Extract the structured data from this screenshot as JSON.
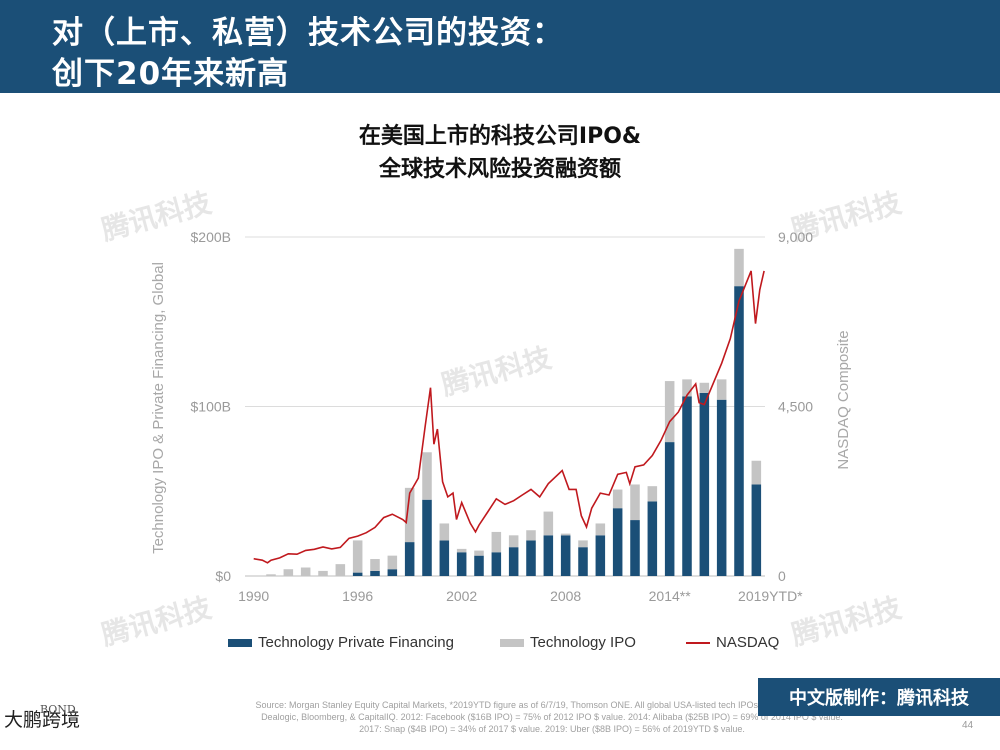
{
  "header": {
    "title_line1": "对（上市、私营）技术公司的投资：",
    "title_line2": "创下20年来新高"
  },
  "chart_title_line1": "在美国上市的科技公司IPO&",
  "chart_title_line2": "全球技术风险投资融资额",
  "chart_data": {
    "type": "bar",
    "stacked": true,
    "categories": [
      "1990",
      "1991",
      "1992",
      "1993",
      "1994",
      "1995",
      "1996",
      "1997",
      "1998",
      "1999",
      "2000",
      "2001",
      "2002",
      "2003",
      "2004",
      "2005",
      "2006",
      "2007",
      "2008",
      "2009",
      "2010",
      "2011",
      "2012",
      "2013",
      "2014",
      "2015",
      "2016",
      "2017",
      "2018",
      "2019YTD"
    ],
    "series": [
      {
        "name": "Technology Private Financing",
        "color": "#1b4f77",
        "values": [
          0,
          0,
          0,
          0,
          0,
          0,
          2,
          3,
          4,
          20,
          45,
          21,
          14,
          12,
          14,
          17,
          21,
          24,
          24,
          17,
          24,
          40,
          33,
          44,
          79,
          106,
          108,
          104,
          171,
          54
        ]
      },
      {
        "name": "Technology IPO",
        "color": "#c4c4c4",
        "values": [
          0,
          1,
          4,
          5,
          3,
          7,
          19,
          7,
          8,
          32,
          28,
          10,
          2,
          3,
          12,
          7,
          6,
          14,
          1,
          4,
          7,
          11,
          21,
          9,
          36,
          10,
          6,
          12,
          22,
          14
        ]
      }
    ],
    "line": {
      "name": "NASDAQ",
      "color": "#c0191e",
      "axis": "right",
      "points": [
        [
          1990.0,
          460
        ],
        [
          1990.5,
          420
        ],
        [
          1990.8,
          350
        ],
        [
          1991.0,
          420
        ],
        [
          1991.5,
          480
        ],
        [
          1992.0,
          590
        ],
        [
          1992.5,
          580
        ],
        [
          1993.0,
          680
        ],
        [
          1993.5,
          710
        ],
        [
          1994.0,
          770
        ],
        [
          1994.5,
          720
        ],
        [
          1995.0,
          760
        ],
        [
          1995.5,
          1000
        ],
        [
          1996.0,
          1060
        ],
        [
          1996.5,
          1150
        ],
        [
          1997.0,
          1290
        ],
        [
          1997.5,
          1550
        ],
        [
          1998.0,
          1640
        ],
        [
          1998.6,
          1500
        ],
        [
          1998.8,
          1420
        ],
        [
          1999.0,
          2200
        ],
        [
          1999.5,
          2600
        ],
        [
          1999.9,
          4000
        ],
        [
          2000.2,
          5000
        ],
        [
          2000.4,
          3500
        ],
        [
          2000.6,
          3900
        ],
        [
          2000.9,
          2500
        ],
        [
          2001.2,
          2100
        ],
        [
          2001.5,
          2200
        ],
        [
          2001.7,
          1500
        ],
        [
          2002.0,
          1950
        ],
        [
          2002.5,
          1400
        ],
        [
          2002.8,
          1170
        ],
        [
          2003.0,
          1350
        ],
        [
          2003.5,
          1700
        ],
        [
          2004.0,
          2050
        ],
        [
          2004.5,
          1900
        ],
        [
          2005.0,
          2000
        ],
        [
          2005.5,
          2150
        ],
        [
          2006.0,
          2300
        ],
        [
          2006.5,
          2100
        ],
        [
          2007.0,
          2450
        ],
        [
          2007.8,
          2800
        ],
        [
          2008.2,
          2300
        ],
        [
          2008.6,
          2300
        ],
        [
          2008.9,
          1600
        ],
        [
          2009.2,
          1300
        ],
        [
          2009.5,
          1800
        ],
        [
          2010.0,
          2200
        ],
        [
          2010.5,
          2150
        ],
        [
          2011.0,
          2700
        ],
        [
          2011.5,
          2750
        ],
        [
          2011.7,
          2450
        ],
        [
          2012.0,
          2900
        ],
        [
          2012.5,
          2950
        ],
        [
          2013.0,
          3200
        ],
        [
          2013.5,
          3600
        ],
        [
          2014.0,
          4100
        ],
        [
          2014.5,
          4350
        ],
        [
          2015.0,
          4800
        ],
        [
          2015.5,
          5100
        ],
        [
          2015.7,
          4600
        ],
        [
          2016.0,
          4550
        ],
        [
          2016.5,
          5100
        ],
        [
          2017.0,
          5650
        ],
        [
          2017.5,
          6300
        ],
        [
          2018.0,
          7300
        ],
        [
          2018.7,
          8100
        ],
        [
          2018.95,
          6700
        ],
        [
          2019.2,
          7600
        ],
        [
          2019.45,
          8100
        ]
      ]
    },
    "x_ticks": [
      "1990",
      "1996",
      "2002",
      "2008",
      "2014**",
      "2019YTD*"
    ],
    "y_left_ticks": [
      "$0",
      "$100B",
      "$200B"
    ],
    "y_left_range": [
      0,
      200
    ],
    "y_right_ticks": [
      "0",
      "4,500",
      "9,000"
    ],
    "y_right_range": [
      0,
      9000
    ],
    "ylabel_left": "Technology IPO & Private Financing, Global",
    "ylabel_right": "NASDAQ Composite",
    "legend": [
      "Technology Private Financing",
      "Technology IPO",
      "NASDAQ"
    ],
    "legend_position": "bottom",
    "grid": true
  },
  "source_text": "Source: Morgan Stanley Equity Capital Markets, *2019YTD figure as of 6/7/19, Thomson ONE. All global USA-listed tech IPOs over $30MM, data per Dealogic, Bloomberg, & CapitalIQ. 2012: Facebook ($16B IPO) = 75% of 2012 IPO $ value. 2014: Alibaba ($25B IPO) = 69% of 2014 IPO $ value. 2017: Snap ($4B IPO) = 34% of 2017 $ value. 2019: Uber ($8B IPO) = 56% of 2019YTD $ value.",
  "badge_text": "中文版制作：腾讯科技",
  "page_number": "44",
  "watermark_text": "腾讯科技",
  "corner_text": "大鹏跨境",
  "corner_small": "BOND"
}
